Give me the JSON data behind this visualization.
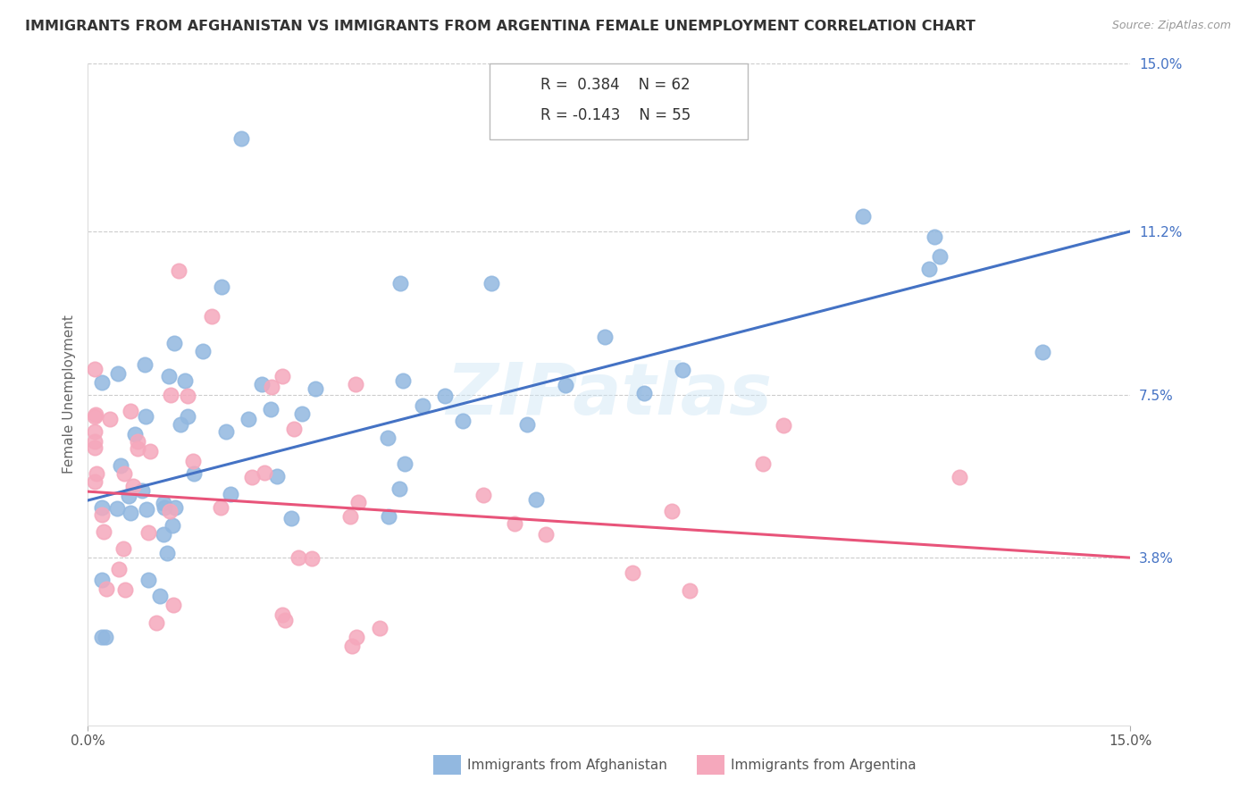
{
  "title": "IMMIGRANTS FROM AFGHANISTAN VS IMMIGRANTS FROM ARGENTINA FEMALE UNEMPLOYMENT CORRELATION CHART",
  "source": "Source: ZipAtlas.com",
  "ylabel": "Female Unemployment",
  "legend_label1": "Immigrants from Afghanistan",
  "legend_label2": "Immigrants from Argentina",
  "watermark": "ZIPatlas",
  "ytick_labels": [
    "15.0%",
    "11.2%",
    "7.5%",
    "3.8%"
  ],
  "ytick_values": [
    0.15,
    0.112,
    0.075,
    0.038
  ],
  "color_afghanistan": "#92b8e0",
  "color_argentina": "#f5a8bc",
  "color_line_afghanistan": "#4472c4",
  "color_line_argentina": "#e8547a",
  "xlim": [
    0.0,
    0.15
  ],
  "ylim": [
    0.0,
    0.15
  ],
  "line_afg_x0": 0.0,
  "line_afg_y0": 0.051,
  "line_afg_x1": 0.15,
  "line_afg_y1": 0.112,
  "line_arg_x0": 0.0,
  "line_arg_y0": 0.053,
  "line_arg_x1": 0.15,
  "line_arg_y1": 0.038
}
